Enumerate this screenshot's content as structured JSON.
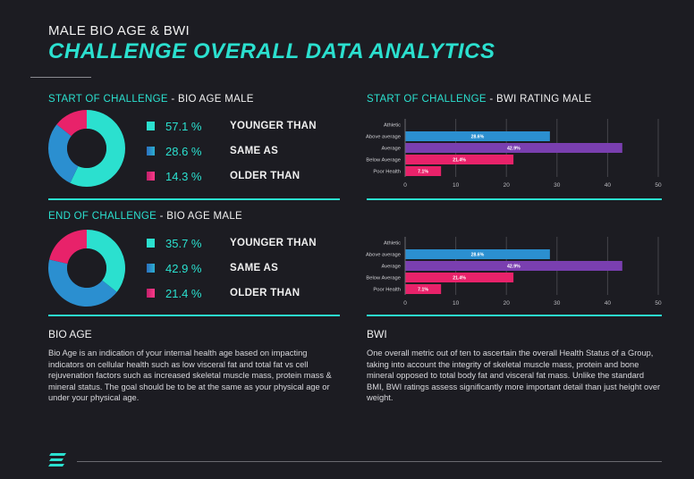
{
  "header": {
    "kicker": "MALE BIO AGE & BWI",
    "title": "CHALLENGE OVERALL DATA ANALYTICS"
  },
  "colors": {
    "teal": "#2be0cf",
    "blue": "#2b8fd0",
    "pink": "#e8226a",
    "purple": "#7a3fb0",
    "bg": "#1c1c22"
  },
  "start_bio": {
    "heading_a": "START OF CHALLENGE",
    "heading_b": " - BIO AGE MALE",
    "legend": [
      {
        "value": "57.1 %",
        "label": "YOUNGER THAN"
      },
      {
        "value": "28.6 %",
        "label": "SAME AS"
      },
      {
        "value": "14.3 %",
        "label": "OLDER THAN"
      }
    ]
  },
  "end_bio": {
    "heading_a": "END OF CHALLENGE",
    "heading_b": " - BIO AGE MALE",
    "legend": [
      {
        "value": "35.7 %",
        "label": "YOUNGER THAN"
      },
      {
        "value": "42.9 %",
        "label": "SAME AS"
      },
      {
        "value": "21.4 %",
        "label": "OLDER THAN"
      }
    ]
  },
  "start_bwi": {
    "heading_a": "START OF CHALLENGE",
    "heading_b": " - BWI RATING MALE"
  },
  "bio_age": {
    "heading": "BIO AGE",
    "text": "Bio Age is an indication of your internal health age based on impacting indicators on cellular health such as low visceral fat and total fat vs cell rejuvenation factors such as increased skeletal muscle mass, protein mass & mineral status. The goal should be to be at the same as your physical age or under your physical age."
  },
  "bwi": {
    "heading": "BWI",
    "text": "One overall metric out of ten to ascertain the overall Health Status of a Group, taking into account the integrity of skeletal muscle mass, protein and bone mineral opposed to total body fat and visceral fat mass. Unlike the standard BMI, BWI ratings assess significantly more important detail than just height over weight."
  },
  "footer": {
    "logo_icon": "stacked-bars-logo"
  },
  "chart_data": [
    {
      "type": "pie",
      "donut": true,
      "categories": [
        "YOUNGER THAN",
        "SAME AS",
        "OLDER THAN"
      ],
      "values": [
        57.1,
        28.6,
        14.3
      ],
      "colors": [
        "#2be0cf",
        "#2b8fd0",
        "#e8226a"
      ],
      "title": "START OF CHALLENGE - BIO AGE MALE"
    },
    {
      "type": "bar",
      "orientation": "horizontal",
      "title": "START OF CHALLENGE - BWI RATING MALE",
      "categories": [
        "Athletic",
        "Above average",
        "Average",
        "Below Average",
        "Poor Health"
      ],
      "values": [
        0,
        28.6,
        42.9,
        21.4,
        7.1
      ],
      "labels": [
        "",
        "28.6%",
        "42.9%",
        "21.4%",
        "7.1%"
      ],
      "colors": [
        "#2b8fd0",
        "#2b8fd0",
        "#7a3fb0",
        "#e8226a",
        "#e8226a"
      ],
      "xlim": [
        0,
        50
      ],
      "xticks": [
        0,
        10,
        20,
        30,
        40,
        50
      ],
      "grid": true
    },
    {
      "type": "pie",
      "donut": true,
      "categories": [
        "YOUNGER THAN",
        "SAME AS",
        "OLDER THAN"
      ],
      "values": [
        35.7,
        42.9,
        21.4
      ],
      "colors": [
        "#2be0cf",
        "#2b8fd0",
        "#e8226a"
      ],
      "title": "END OF CHALLENGE - BIO AGE MALE"
    },
    {
      "type": "bar",
      "orientation": "horizontal",
      "categories": [
        "Athletic",
        "Above average",
        "Average",
        "Below Average",
        "Poor Health"
      ],
      "values": [
        0,
        28.6,
        42.9,
        21.4,
        7.1
      ],
      "labels": [
        "",
        "28.6%",
        "42.9%",
        "21.4%",
        "7.1%"
      ],
      "colors": [
        "#2b8fd0",
        "#2b8fd0",
        "#7a3fb0",
        "#e8226a",
        "#e8226a"
      ],
      "xlim": [
        0,
        50
      ],
      "xticks": [
        0,
        10,
        20,
        30,
        40,
        50
      ],
      "grid": true
    }
  ]
}
